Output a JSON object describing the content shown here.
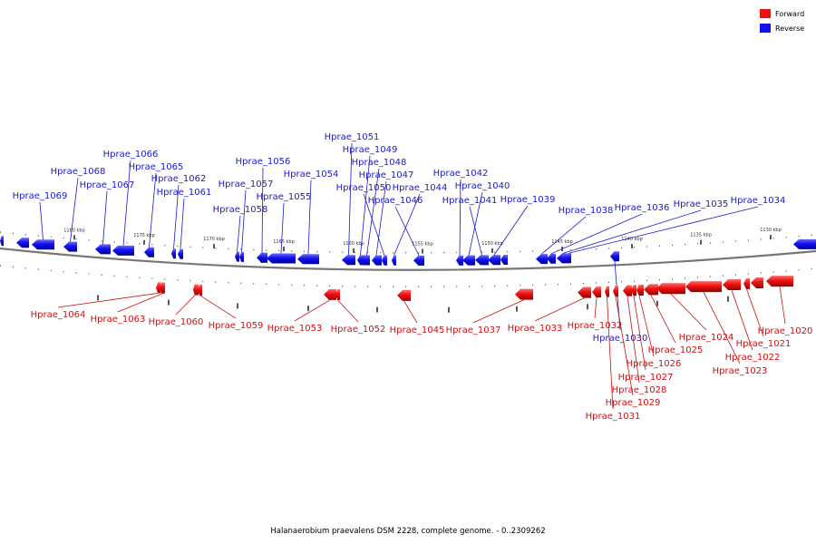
{
  "colors": {
    "forward": "#ee1111",
    "reverse": "#1111ee",
    "forward_label": "#cc1111",
    "reverse_label": "#1a1acc",
    "backbone": "#777777"
  },
  "legend": {
    "forward_label": "Forward",
    "reverse_label": "Reverse"
  },
  "caption": "Halanaerobium praevalens DSM 2228, complete genome. - 0..2309262",
  "scale_ticks": [
    "1180 kbp",
    "1175 kbp",
    "1170 kbp",
    "1165 kbp",
    "1160 kbp",
    "1155 kbp",
    "1150 kbp",
    "1145 kbp",
    "1140 kbp",
    "1135 kbp",
    "1130 kbp"
  ],
  "reverse_genes": [
    "Hprae_1069",
    "Hprae_1068",
    "Hprae_1067",
    "Hprae_1066",
    "Hprae_1065",
    "Hprae_1062",
    "Hprae_1061",
    "Hprae_1058",
    "Hprae_1057",
    "Hprae_1056",
    "Hprae_1055",
    "Hprae_1054",
    "Hprae_1051",
    "Hprae_1049",
    "Hprae_1048",
    "Hprae_1047",
    "Hprae_1050",
    "Hprae_1044",
    "Hprae_1046",
    "Hprae_1042",
    "Hprae_1040",
    "Hprae_1041",
    "Hprae_1039",
    "Hprae_1038",
    "Hprae_1036",
    "Hprae_1035",
    "Hprae_1034",
    "Hprae_1030"
  ],
  "forward_genes": [
    "Hprae_1064",
    "Hprae_1063",
    "Hprae_1060",
    "Hprae_1059",
    "Hprae_1053",
    "Hprae_1052",
    "Hprae_1045",
    "Hprae_1037",
    "Hprae_1033",
    "Hprae_1032",
    "Hprae_1031",
    "Hprae_1029",
    "Hprae_1028",
    "Hprae_1027",
    "Hprae_1026",
    "Hprae_1025",
    "Hprae_1024",
    "Hprae_1023",
    "Hprae_1022",
    "Hprae_1021",
    "Hprae_1020"
  ]
}
